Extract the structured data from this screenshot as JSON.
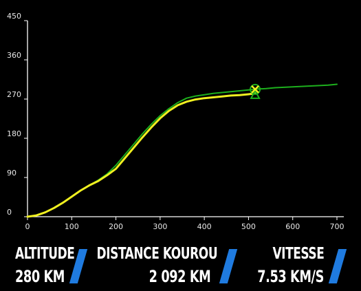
{
  "chart_data": {
    "type": "line",
    "title": "",
    "xlabel": "",
    "ylabel": "",
    "xlim": [
      0,
      700
    ],
    "ylim": [
      0,
      450
    ],
    "x_ticks": [
      "0",
      "100",
      "200",
      "300",
      "400",
      "500",
      "600",
      "700"
    ],
    "y_ticks": [
      "0",
      "90",
      "180",
      "270",
      "360",
      "450"
    ],
    "grid": false,
    "series": [
      {
        "color": "#1db01d",
        "x": [
          0,
          20,
          40,
          60,
          80,
          100,
          120,
          140,
          160,
          180,
          200,
          220,
          240,
          260,
          280,
          300,
          320,
          340,
          360,
          380,
          400,
          420,
          440,
          460,
          480,
          500,
          520,
          540,
          560,
          580,
          600,
          620,
          640,
          660,
          680,
          700
        ],
        "y": [
          0,
          3,
          10,
          20,
          32,
          46,
          60,
          72,
          84,
          98,
          118,
          142,
          166,
          190,
          212,
          232,
          248,
          262,
          272,
          277,
          280,
          283,
          285,
          287,
          289,
          291,
          293,
          294,
          296,
          297,
          298,
          299,
          300,
          301,
          302,
          304
        ]
      },
      {
        "color": "#f0f020",
        "x": [
          0,
          20,
          40,
          60,
          80,
          100,
          120,
          140,
          160,
          180,
          200,
          220,
          240,
          260,
          280,
          300,
          320,
          340,
          360,
          380,
          400,
          420,
          440,
          460,
          480,
          500,
          515
        ],
        "y": [
          0,
          3,
          10,
          20,
          32,
          46,
          60,
          72,
          82,
          95,
          110,
          134,
          158,
          182,
          205,
          226,
          243,
          256,
          264,
          269,
          272,
          274,
          276,
          278,
          279,
          281,
          283
        ]
      }
    ],
    "marker": {
      "x": 515,
      "y": 286,
      "color": "#1db01d",
      "cross_color": "#f0f020"
    }
  },
  "readouts": {
    "altitude": {
      "label": "ALTITUDE",
      "value": "280 KM"
    },
    "distance": {
      "label": "DISTANCE KOUROU",
      "value": "2 092 KM"
    },
    "speed": {
      "label": "VITESSE",
      "value": "7.53 KM/S"
    }
  }
}
